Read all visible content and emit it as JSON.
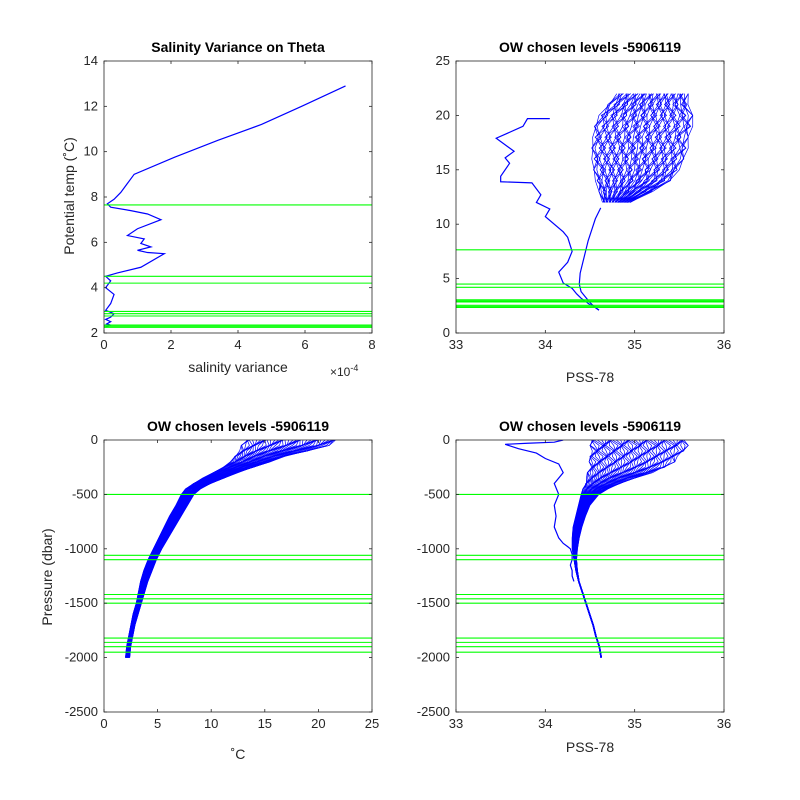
{
  "chart_data": [
    {
      "type": "line",
      "title": "Salinity Variance on Theta",
      "xlabel": "salinity variance",
      "x_exponent_label": "×10",
      "x_exponent_power": "-4",
      "ylabel": "Potential temp (˚C)",
      "xlim": [
        0,
        0.0008
      ],
      "ylim": [
        2,
        14
      ],
      "x_tick_values": [
        0,
        0.0002,
        0.0004,
        0.0006,
        0.0008
      ],
      "x_tick_labels": [
        "0",
        "2",
        "4",
        "6",
        "8"
      ],
      "y_tick_values": [
        2,
        4,
        6,
        8,
        10,
        12,
        14
      ],
      "y_tick_labels": [
        "2",
        "4",
        "6",
        "8",
        "10",
        "12",
        "14"
      ],
      "series": [
        {
          "color": "#0000ff",
          "x": [
            0.000721,
            0.00059,
            0.00047,
            0.00034,
            0.00021,
            9e-05,
            7e-05,
            5e-05,
            3e-05,
            1e-05,
            2e-05,
            8e-05,
            0.00013,
            0.00017,
            0.0001,
            7e-05,
            0.00012,
            0.00011,
            0.00014,
            0.0001,
            0.00013,
            0.00018,
            0.00011,
            4e-05,
            5e-06,
            2e-05,
            5e-06,
            3e-05,
            2e-05,
            5e-06,
            3e-05,
            2e-05,
            5e-06,
            2e-05,
            8e-06,
            2e-05,
            5e-06
          ],
          "y": [
            12.9,
            12.0,
            11.2,
            10.5,
            9.75,
            9.0,
            8.6,
            8.2,
            7.9,
            7.7,
            7.55,
            7.4,
            7.25,
            7.0,
            6.6,
            6.3,
            6.15,
            5.95,
            5.8,
            5.65,
            5.55,
            5.5,
            4.9,
            4.65,
            4.5,
            4.3,
            4.0,
            3.7,
            3.3,
            3.0,
            2.85,
            2.7,
            2.6,
            2.5,
            2.4,
            2.35,
            2.25
          ]
        }
      ],
      "hlines": {
        "color": "#00ff00",
        "values": [
          7.65,
          4.5,
          4.2,
          2.95,
          2.85,
          2.75,
          2.35,
          2.3,
          2.25
        ]
      }
    },
    {
      "type": "line",
      "title": "OW chosen levels -5906119",
      "xlabel": "PSS-78",
      "ylabel": "",
      "xlim": [
        33,
        36
      ],
      "ylim": [
        0,
        25
      ],
      "x_tick_values": [
        33,
        34,
        35,
        36
      ],
      "x_tick_labels": [
        "33",
        "34",
        "35",
        "36"
      ],
      "y_tick_values": [
        0,
        5,
        10,
        15,
        20,
        25
      ],
      "y_tick_labels": [
        "0",
        "5",
        "10",
        "15",
        "20",
        "25"
      ],
      "series": [
        {
          "color": "#0000ff",
          "x": [
            34.05,
            33.8,
            33.75,
            33.45,
            33.65,
            33.55,
            33.6,
            33.5,
            33.5,
            33.85,
            33.95,
            33.9,
            34.05,
            34.0,
            34.2,
            34.25,
            34.3,
            34.25,
            34.15,
            34.2,
            34.3,
            34.35,
            34.4,
            34.45,
            34.5,
            34.55,
            34.6
          ],
          "y": [
            19.7,
            19.7,
            19.0,
            17.9,
            16.7,
            16.1,
            15.6,
            14.4,
            13.9,
            13.8,
            12.7,
            12.0,
            11.4,
            10.7,
            9.3,
            8.8,
            7.5,
            6.5,
            5.6,
            4.6,
            4.1,
            3.6,
            3.2,
            2.9,
            2.6,
            2.4,
            2.1
          ]
        },
        {
          "color": "#0000ff",
          "x": [
            34.6,
            34.55,
            34.5,
            34.45,
            34.4,
            34.38,
            34.39,
            34.42,
            34.45,
            34.48,
            34.52,
            34.56,
            34.62
          ],
          "y": [
            2.1,
            2.4,
            2.8,
            3.3,
            3.8,
            4.5,
            5.5,
            6.5,
            7.5,
            8.5,
            9.5,
            10.5,
            11.5
          ]
        }
      ],
      "envelope": {
        "color": "#0000ff",
        "y": [
          12,
          13,
          14,
          15,
          16,
          17,
          18,
          19,
          20,
          21,
          22
        ],
        "x_left": [
          34.64,
          34.6,
          34.56,
          34.54,
          34.52,
          34.52,
          34.53,
          34.55,
          34.6,
          34.7,
          34.8
        ],
        "x_right": [
          34.95,
          35.2,
          35.4,
          35.5,
          35.55,
          35.6,
          35.6,
          35.65,
          35.65,
          35.6,
          35.6
        ],
        "n_profiles": 60
      },
      "hlines": {
        "color": "#00ff00",
        "values": [
          7.65,
          4.5,
          4.2,
          3.05,
          2.95,
          2.85,
          2.55,
          2.45,
          2.35
        ]
      }
    },
    {
      "type": "line",
      "title": "OW chosen levels -5906119",
      "xlabel": "˚C",
      "ylabel": "Pressure (dbar)",
      "xlim": [
        0,
        25
      ],
      "ylim": [
        -2500,
        0
      ],
      "x_tick_values": [
        0,
        5,
        10,
        15,
        20,
        25
      ],
      "x_tick_labels": [
        "0",
        "5",
        "10",
        "15",
        "20",
        "25"
      ],
      "y_tick_values": [
        -2500,
        -2000,
        -1500,
        -1000,
        -500,
        0
      ],
      "y_tick_labels": [
        "-2500",
        "-2000",
        "-1500",
        "-1000",
        "-500",
        "0"
      ],
      "series": [],
      "band": {
        "color": "#0000ff",
        "y": [
          -2000,
          -1900,
          -1800,
          -1700,
          -1600,
          -1500,
          -1400,
          -1300,
          -1200,
          -1100,
          -1000,
          -900,
          -800,
          -700,
          -600,
          -500,
          -450,
          -400,
          -350,
          -300,
          -250,
          -200,
          -150,
          -100,
          -50,
          0
        ],
        "x_left": [
          2.0,
          2.1,
          2.3,
          2.5,
          2.7,
          3.0,
          3.2,
          3.4,
          3.7,
          4.1,
          4.6,
          5.1,
          5.6,
          6.1,
          6.7,
          7.2,
          7.6,
          8.3,
          9.2,
          10.2,
          11.0,
          11.8,
          12.2,
          12.5,
          12.8,
          13.2
        ],
        "x_right": [
          2.4,
          2.5,
          2.7,
          2.9,
          3.2,
          3.5,
          3.8,
          4.1,
          4.5,
          4.9,
          5.4,
          6.0,
          6.6,
          7.2,
          7.8,
          8.4,
          9.0,
          10.0,
          11.2,
          12.5,
          14.0,
          15.5,
          17.0,
          19.0,
          21.0,
          22.0
        ],
        "n_profiles": 60
      },
      "hlines": {
        "color": "#00ff00",
        "values": [
          -500,
          -1060,
          -1100,
          -1420,
          -1460,
          -1500,
          -1820,
          -1860,
          -1900,
          -1950
        ]
      }
    },
    {
      "type": "line",
      "title": "OW chosen levels -5906119",
      "xlabel": "PSS-78",
      "ylabel": "",
      "xlim": [
        33,
        36
      ],
      "ylim": [
        -2500,
        0
      ],
      "x_tick_values": [
        33,
        34,
        35,
        36
      ],
      "x_tick_labels": [
        "33",
        "34",
        "35",
        "36"
      ],
      "y_tick_values": [
        -2500,
        -2000,
        -1500,
        -1000,
        -500,
        0
      ],
      "y_tick_labels": [
        "-2500",
        "-2000",
        "-1500",
        "-1000",
        "-500",
        "0"
      ],
      "series": [
        {
          "color": "#0000ff",
          "x": [
            34.2,
            34.1,
            33.8,
            33.55,
            33.7,
            33.9,
            34.0,
            34.15,
            34.2,
            34.1,
            34.15,
            34.1,
            34.12,
            34.1,
            34.15,
            34.2,
            34.25,
            34.28,
            34.3,
            34.3,
            34.28,
            34.3,
            34.3,
            34.32
          ],
          "y": [
            0,
            -20,
            -30,
            -40,
            -80,
            -120,
            -170,
            -220,
            -300,
            -400,
            -500,
            -600,
            -700,
            -800,
            -900,
            -950,
            -980,
            -1000,
            -1050,
            -1100,
            -1150,
            -1200,
            -1250,
            -1300
          ]
        }
      ],
      "band": {
        "color": "#0000ff",
        "y": [
          -2000,
          -1900,
          -1800,
          -1700,
          -1600,
          -1500,
          -1400,
          -1300,
          -1200,
          -1100,
          -1000,
          -900,
          -800,
          -700,
          -600,
          -500,
          -450,
          -400,
          -350,
          -300,
          -250,
          -200,
          -150,
          -100,
          -50,
          0
        ],
        "x_left": [
          34.62,
          34.6,
          34.56,
          34.53,
          34.49,
          34.45,
          34.41,
          34.37,
          34.34,
          34.32,
          34.3,
          34.3,
          34.31,
          34.34,
          34.37,
          34.4,
          34.42,
          34.44,
          34.46,
          34.47,
          34.48,
          34.49,
          34.5,
          34.5,
          34.5,
          34.5
        ],
        "x_right": [
          34.63,
          34.61,
          34.57,
          34.54,
          34.5,
          34.46,
          34.42,
          34.38,
          34.36,
          34.35,
          34.36,
          34.38,
          34.41,
          34.45,
          34.5,
          34.6,
          34.7,
          34.85,
          35.0,
          35.2,
          35.35,
          35.45,
          35.5,
          35.55,
          35.6,
          35.6
        ],
        "n_profiles": 60
      },
      "hlines": {
        "color": "#00ff00",
        "values": [
          -500,
          -1060,
          -1100,
          -1420,
          -1460,
          -1500,
          -1820,
          -1860,
          -1900,
          -1950
        ]
      }
    }
  ]
}
